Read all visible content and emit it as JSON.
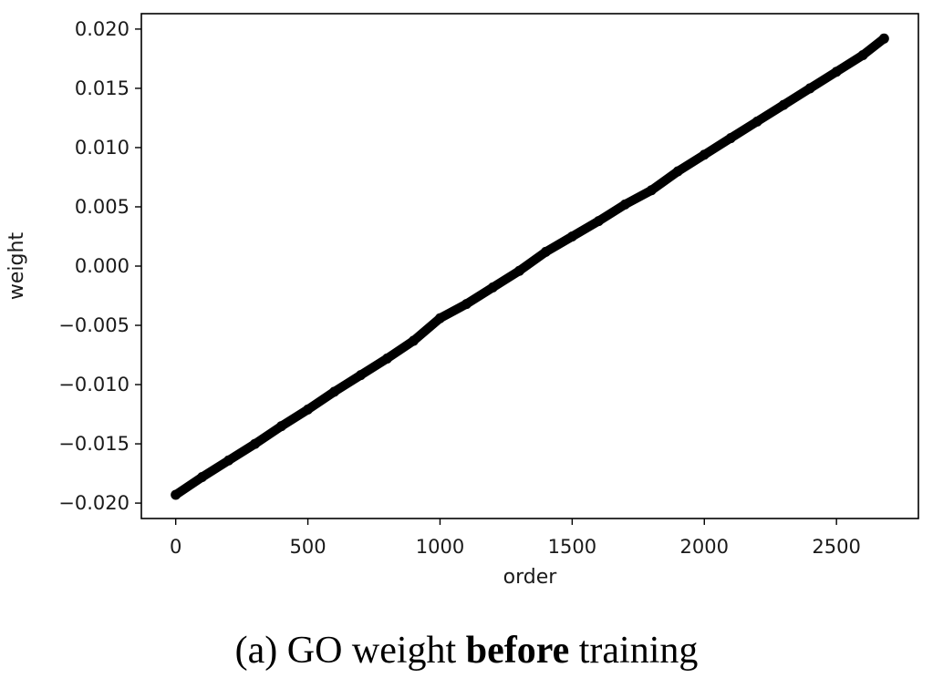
{
  "chart_data": {
    "type": "line",
    "xlabel": "order",
    "ylabel": "weight",
    "xlim": [
      -130,
      2810
    ],
    "ylim": [
      -0.0213,
      0.0213
    ],
    "xticks": [
      0,
      500,
      1000,
      1500,
      2000,
      2500
    ],
    "yticks": [
      0.02,
      0.015,
      0.01,
      0.005,
      0.0,
      -0.005,
      -0.01,
      -0.015,
      -0.02
    ],
    "ytick_labels": [
      "0.020",
      "0.015",
      "0.010",
      "0.005",
      "0.000",
      "−0.005",
      "−0.010",
      "−0.015",
      "−0.020"
    ],
    "grid": false,
    "series": [
      {
        "color": "#000000",
        "marker": "circle",
        "x": [
          0,
          100,
          200,
          300,
          400,
          500,
          600,
          700,
          800,
          900,
          1000,
          1100,
          1200,
          1300,
          1400,
          1500,
          1600,
          1700,
          1800,
          1900,
          2000,
          2100,
          2200,
          2300,
          2400,
          2500,
          2600,
          2680
        ],
        "y": [
          -0.0193,
          -0.0178,
          -0.0164,
          -0.015,
          -0.0135,
          -0.0121,
          -0.0106,
          -0.0092,
          -0.0078,
          -0.0063,
          -0.0044,
          -0.0032,
          -0.0018,
          -0.0004,
          0.0012,
          0.0025,
          0.0038,
          0.0052,
          0.0064,
          0.008,
          0.0094,
          0.0108,
          0.0122,
          0.0136,
          0.015,
          0.0164,
          0.0178,
          0.0192
        ]
      }
    ]
  },
  "caption": {
    "prefix": "(a) GO weight ",
    "bold": "before",
    "suffix": " training"
  }
}
